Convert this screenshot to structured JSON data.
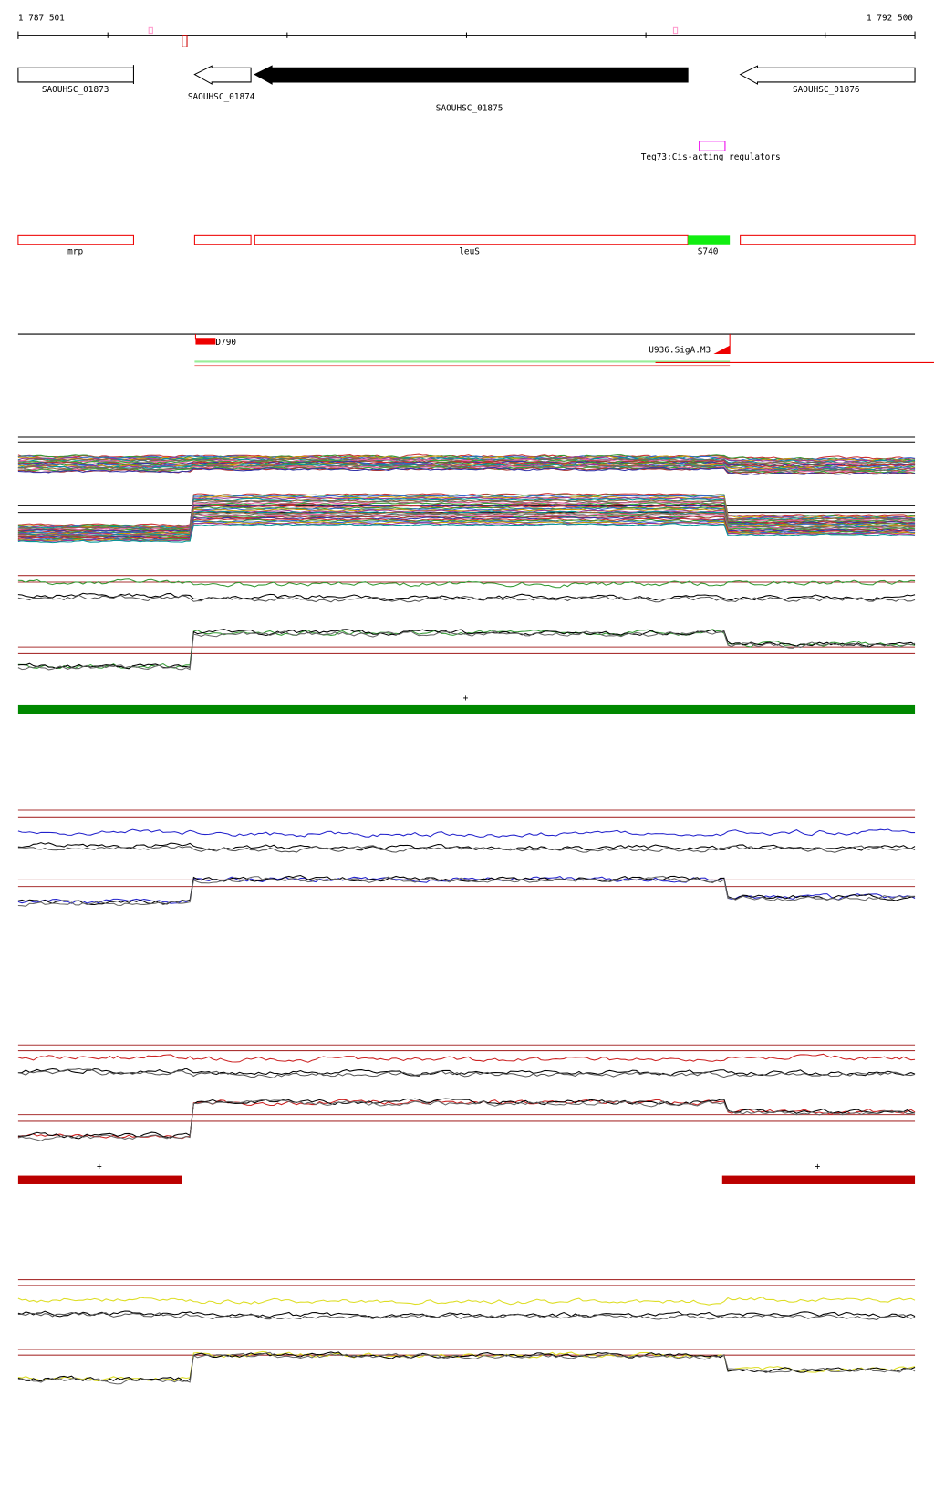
{
  "axis": {
    "start": "1 787 501",
    "end": "1 792 500"
  },
  "genes": [
    "SAOUHSC_01873",
    "SAOUHSC_01874",
    "SAOUHSC_01875",
    "SAOUHSC_01876"
  ],
  "regulators": [
    "Teg73:Cis-acting regulators"
  ],
  "transcripts": [
    "mrp",
    "leuS",
    "S740"
  ],
  "features": [
    "D790",
    "U936.SigA.M3"
  ],
  "strand_marks": [
    "+",
    "+",
    "+"
  ]
}
